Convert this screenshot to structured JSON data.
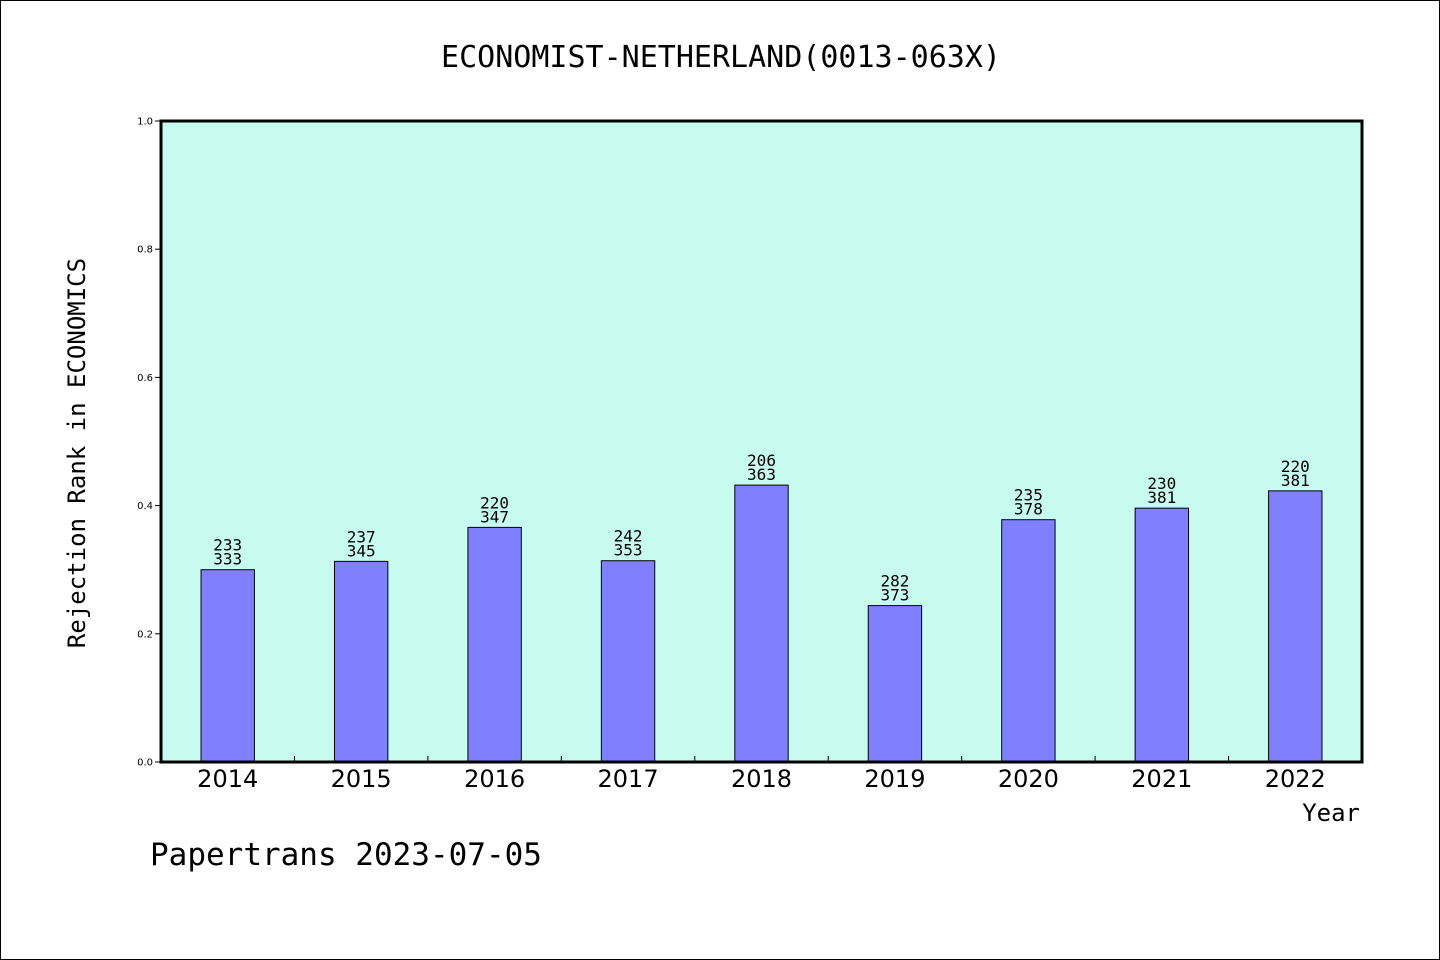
{
  "chart_data": {
    "type": "bar",
    "title": "ECONOMIST-NETHERLAND(0013-063X)",
    "xlabel": "Year",
    "ylabel": "Rejection Rank in ECONOMICS",
    "ylim": [
      0,
      1.0
    ],
    "yticks": [
      "0.0",
      "0.2",
      "0.4",
      "0.6",
      "0.8",
      "1.0"
    ],
    "grid": false,
    "categories": [
      "2014",
      "2015",
      "2016",
      "2017",
      "2018",
      "2019",
      "2020",
      "2021",
      "2022"
    ],
    "values": [
      0.3,
      0.313,
      0.366,
      0.314,
      0.432,
      0.244,
      0.378,
      0.396,
      0.423
    ],
    "labels_top": [
      "233",
      "237",
      "220",
      "242",
      "206",
      "282",
      "235",
      "230",
      "220"
    ],
    "labels_bottom": [
      "333",
      "345",
      "347",
      "353",
      "363",
      "373",
      "378",
      "381",
      "381"
    ],
    "colors": {
      "plot_background": "#c8fbef",
      "bar": "#8080ff"
    }
  },
  "footer": "Papertrans 2023-07-05"
}
